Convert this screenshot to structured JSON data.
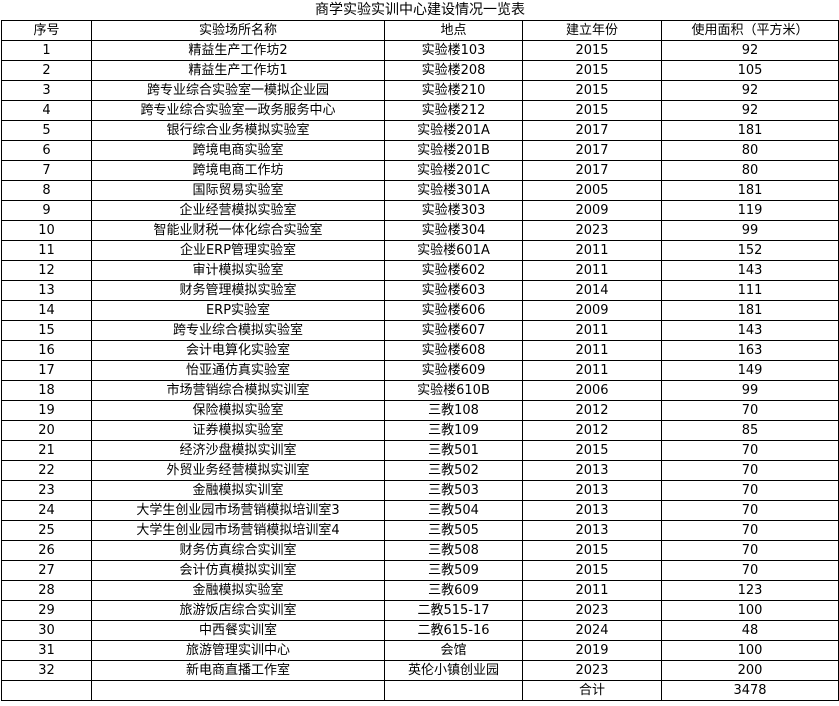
{
  "title": "商学实验实训中心建设情况一览表",
  "table": {
    "header": [
      "序号",
      "实验场所名称",
      "地点",
      "建立年份",
      "使用面积（平方米）"
    ],
    "rows": [
      [
        1,
        "精益生产工作坊2",
        "实验楼103",
        2015,
        92
      ],
      [
        2,
        "精益生产工作坊1",
        "实验楼208",
        2015,
        105
      ],
      [
        3,
        "跨专业综合实验室一模拟企业园",
        "实验楼210",
        2015,
        92
      ],
      [
        4,
        "跨专业综合实验室一政务服务中心",
        "实验楼212",
        2015,
        92
      ],
      [
        5,
        "银行综合业务模拟实验室",
        "实验楼201A",
        2017,
        181
      ],
      [
        6,
        "跨境电商实验室",
        "实验楼201B",
        2017,
        80
      ],
      [
        7,
        "跨境电商工作坊",
        "实验楼201C",
        2017,
        80
      ],
      [
        8,
        "国际贸易实验室",
        "实验楼301A",
        2005,
        181
      ],
      [
        9,
        "企业经营模拟实验室",
        "实验楼303",
        2009,
        119
      ],
      [
        10,
        "智能业财税一体化综合实验室",
        "实验楼304",
        2023,
        99
      ],
      [
        11,
        "企业ERP管理实验室",
        "实验楼601A",
        2011,
        152
      ],
      [
        12,
        "审计模拟实验室",
        "实验楼602",
        2011,
        143
      ],
      [
        13,
        "财务管理模拟实验室",
        "实验楼603",
        2014,
        111
      ],
      [
        14,
        "ERP实验室",
        "实验楼606",
        2009,
        181
      ],
      [
        15,
        "跨专业综合模拟实验室",
        "实验楼607",
        2011,
        143
      ],
      [
        16,
        "会计电算化实验室",
        "实验楼608",
        2011,
        163
      ],
      [
        17,
        "怡亚通仿真实验室",
        "实验楼609",
        2011,
        149
      ],
      [
        18,
        "市场营销综合模拟实训室",
        "实验楼610B",
        2006,
        99
      ],
      [
        19,
        "保险模拟实验室",
        "三教108",
        2012,
        70
      ],
      [
        20,
        "证券模拟实验室",
        "三教109",
        2012,
        85
      ],
      [
        21,
        "经济沙盘模拟实训室",
        "三教501",
        2015,
        70
      ],
      [
        22,
        "外贸业务经营模拟实训室",
        "三教502",
        2013,
        70
      ],
      [
        23,
        "金融模拟实训室",
        "三教503",
        2013,
        70
      ],
      [
        24,
        "大学生创业园市场营销模拟培训室3",
        "三教504",
        2013,
        70
      ],
      [
        25,
        "大学生创业园市场营销模拟培训室4",
        "三教505",
        2013,
        70
      ],
      [
        26,
        "财务仿真综合实训室",
        "三教508",
        2015,
        70
      ],
      [
        27,
        "会计仿真模拟实训室",
        "三教509",
        2015,
        70
      ],
      [
        28,
        "金融模拟实验室",
        "三教609",
        2011,
        123
      ],
      [
        29,
        "旅游饭店综合实训室",
        "二教515-17",
        2023,
        100
      ],
      [
        30,
        "中西餐实训室",
        "二教615-16",
        2024,
        48
      ],
      [
        31,
        "旅游管理实训中心",
        "会馆",
        2019,
        100
      ],
      [
        32,
        "新电商直播工作室",
        "英伦小镇创业园",
        2023,
        200
      ]
    ],
    "total": {
      "label": "合计",
      "value": 3478
    }
  }
}
